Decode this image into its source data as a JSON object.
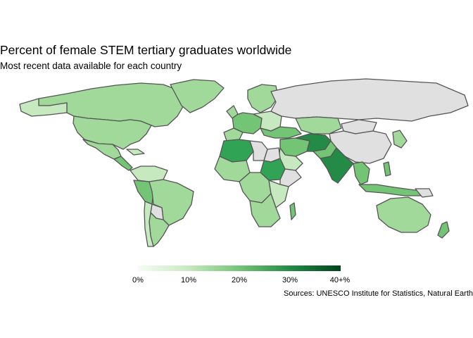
{
  "title": "Percent of female STEM tertiary graduates worldwide",
  "subtitle": "Most recent data available for each country",
  "caption": "Sources: UNESCO Institute for Statistics, Natural Earth",
  "legend": {
    "ticks": [
      "0%",
      "10%",
      "20%",
      "30%",
      "40+%"
    ],
    "colors": [
      "#f7fcf5",
      "#c7e9c0",
      "#74c476",
      "#238b45",
      "#00441b"
    ]
  },
  "colors": {
    "no_data": "#e0e0e0",
    "border": "#555555",
    "light": "#c7e9c0",
    "mid": "#a1d99b",
    "medium": "#74c476",
    "dark": "#31a354",
    "darker": "#238b45",
    "darkest": "#006d2c"
  }
}
